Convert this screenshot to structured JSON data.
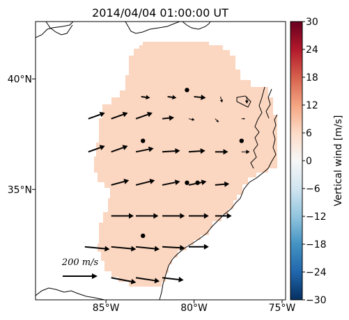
{
  "chart_data": {
    "type": "quiver",
    "title": "2014/04/04 01:00:00 UT",
    "colorbar": {
      "label": "Vertical wind [m/s]",
      "ticks": [
        30,
        24,
        18,
        12,
        6,
        0,
        -6,
        -12,
        -18,
        -24,
        -30
      ],
      "range": [
        -30,
        30
      ],
      "cmap": "RdBu_r"
    },
    "xaxis": {
      "ticks": [
        "85°W",
        "80°W",
        "75°W"
      ],
      "lon_values": [
        -85,
        -80,
        -75
      ],
      "range": [
        -89,
        -74.8
      ]
    },
    "yaxis": {
      "ticks": [
        "40°N",
        "35°N"
      ],
      "lat_values": [
        40,
        35
      ],
      "range": [
        30.0,
        42.6
      ]
    },
    "field_value": 7,
    "field_color": "#fbd6c0",
    "scale_label": "200 m/s",
    "scale_value": 200,
    "vectors": [
      {
        "lon": -83.0,
        "lat": 39.2,
        "u": 15,
        "v": -2
      },
      {
        "lon": -81.5,
        "lat": 39.2,
        "u": 15,
        "v": -2
      },
      {
        "lon": -80.0,
        "lat": 39.2,
        "u": 20,
        "v": -2
      },
      {
        "lon": -78.5,
        "lat": 39.2,
        "u": 3,
        "v": -10
      },
      {
        "lon": -77.0,
        "lat": 39.2,
        "u": 0,
        "v": -12
      },
      {
        "lon": -86.0,
        "lat": 38.2,
        "u": 28,
        "v": 10
      },
      {
        "lon": -84.7,
        "lat": 38.2,
        "u": 28,
        "v": 10
      },
      {
        "lon": -83.3,
        "lat": 38.2,
        "u": 28,
        "v": 10
      },
      {
        "lon": -81.8,
        "lat": 38.2,
        "u": 20,
        "v": 2
      },
      {
        "lon": -80.3,
        "lat": 38.2,
        "u": 10,
        "v": -2
      },
      {
        "lon": -78.8,
        "lat": 38.2,
        "u": 6,
        "v": -6
      },
      {
        "lon": -77.3,
        "lat": 38.2,
        "u": 6,
        "v": 0
      },
      {
        "lon": -86.0,
        "lat": 36.7,
        "u": 28,
        "v": 10
      },
      {
        "lon": -84.7,
        "lat": 36.7,
        "u": 28,
        "v": 10
      },
      {
        "lon": -83.3,
        "lat": 36.7,
        "u": 30,
        "v": 6
      },
      {
        "lon": -81.8,
        "lat": 36.7,
        "u": 30,
        "v": 2
      },
      {
        "lon": -80.3,
        "lat": 36.7,
        "u": 28,
        "v": 2
      },
      {
        "lon": -78.8,
        "lat": 36.7,
        "u": 22,
        "v": 0
      },
      {
        "lon": -77.3,
        "lat": 36.7,
        "u": 14,
        "v": 0
      },
      {
        "lon": -84.7,
        "lat": 35.2,
        "u": 30,
        "v": 8
      },
      {
        "lon": -83.3,
        "lat": 35.2,
        "u": 32,
        "v": 8
      },
      {
        "lon": -81.8,
        "lat": 35.2,
        "u": 30,
        "v": 6
      },
      {
        "lon": -80.3,
        "lat": 35.2,
        "u": 30,
        "v": 6
      },
      {
        "lon": -78.8,
        "lat": 35.2,
        "u": 24,
        "v": 2
      },
      {
        "lon": -84.7,
        "lat": 33.8,
        "u": 38,
        "v": 0
      },
      {
        "lon": -83.3,
        "lat": 33.8,
        "u": 38,
        "v": 0
      },
      {
        "lon": -81.8,
        "lat": 33.8,
        "u": 38,
        "v": 0
      },
      {
        "lon": -80.3,
        "lat": 33.8,
        "u": 34,
        "v": 0
      },
      {
        "lon": -78.8,
        "lat": 33.8,
        "u": 28,
        "v": 0
      },
      {
        "lon": -86.2,
        "lat": 32.4,
        "u": 42,
        "v": -4
      },
      {
        "lon": -84.7,
        "lat": 32.4,
        "u": 42,
        "v": -4
      },
      {
        "lon": -83.3,
        "lat": 32.4,
        "u": 40,
        "v": -4
      },
      {
        "lon": -81.8,
        "lat": 32.4,
        "u": 38,
        "v": -2
      },
      {
        "lon": -80.3,
        "lat": 32.4,
        "u": 34,
        "v": 0
      },
      {
        "lon": -84.7,
        "lat": 31.0,
        "u": 42,
        "v": -8
      },
      {
        "lon": -83.3,
        "lat": 31.0,
        "u": 40,
        "v": -6
      },
      {
        "lon": -81.8,
        "lat": 31.0,
        "u": 36,
        "v": -4
      }
    ],
    "sites": [
      {
        "lon": -80.4,
        "lat": 39.5
      },
      {
        "lon": -82.9,
        "lat": 37.2
      },
      {
        "lon": -77.3,
        "lat": 37.2
      },
      {
        "lon": -80.4,
        "lat": 35.3
      },
      {
        "lon": -79.8,
        "lat": 35.3
      },
      {
        "lon": -82.9,
        "lat": 32.9
      }
    ]
  }
}
